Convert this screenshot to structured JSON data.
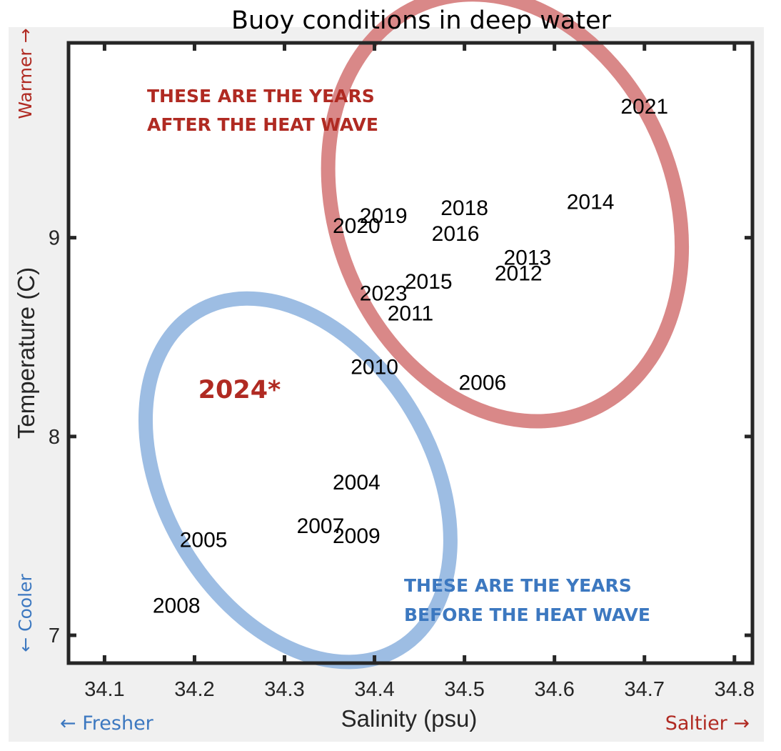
{
  "chart_data": {
    "type": "scatter",
    "title": "Buoy conditions in deep water",
    "xlabel": "Salinity (psu)",
    "ylabel": "Temperature (C)",
    "xlim": [
      34.06,
      34.82
    ],
    "ylim": [
      6.86,
      9.98
    ],
    "xticks": [
      34.1,
      34.2,
      34.3,
      34.4,
      34.5,
      34.6,
      34.7,
      34.8
    ],
    "yticks": [
      7,
      8,
      9
    ],
    "xtick_labels": [
      "34.1",
      "34.2",
      "34.3",
      "34.4",
      "34.5",
      "34.6",
      "34.7",
      "34.8"
    ],
    "ytick_labels": [
      "7",
      "8",
      "9"
    ],
    "grid": false,
    "points": [
      {
        "label": "2021",
        "x": 34.7,
        "y": 9.66
      },
      {
        "label": "2014",
        "x": 34.64,
        "y": 9.18
      },
      {
        "label": "2018",
        "x": 34.5,
        "y": 9.15
      },
      {
        "label": "2019",
        "x": 34.41,
        "y": 9.11
      },
      {
        "label": "2020",
        "x": 34.38,
        "y": 9.06
      },
      {
        "label": "2016",
        "x": 34.49,
        "y": 9.02
      },
      {
        "label": "2013",
        "x": 34.57,
        "y": 8.9
      },
      {
        "label": "2012",
        "x": 34.56,
        "y": 8.82
      },
      {
        "label": "2015",
        "x": 34.46,
        "y": 8.78
      },
      {
        "label": "2023",
        "x": 34.41,
        "y": 8.72
      },
      {
        "label": "2011",
        "x": 34.44,
        "y": 8.62
      },
      {
        "label": "2010",
        "x": 34.4,
        "y": 8.35
      },
      {
        "label": "2006",
        "x": 34.52,
        "y": 8.27
      },
      {
        "label": "2004",
        "x": 34.38,
        "y": 7.77
      },
      {
        "label": "2007",
        "x": 34.34,
        "y": 7.55
      },
      {
        "label": "2009",
        "x": 34.38,
        "y": 7.5
      },
      {
        "label": "2005",
        "x": 34.21,
        "y": 7.48
      },
      {
        "label": "2008",
        "x": 34.18,
        "y": 7.15
      },
      {
        "label": "2024*",
        "x": 34.25,
        "y": 8.23,
        "highlight": true
      }
    ],
    "ellipses": [
      {
        "name": "after",
        "cx": 34.545,
        "cy": 9.15,
        "rx": 0.244,
        "ry": 0.85,
        "angle_deg": -22,
        "color": "#d98888"
      },
      {
        "name": "before",
        "cx": 34.315,
        "cy": 7.78,
        "rx": 0.218,
        "ry": 0.67,
        "angle_deg": -31,
        "color": "#9dbde3"
      }
    ],
    "annotations": {
      "after": [
        "THESE ARE THE YEARS",
        "AFTER THE HEAT WAVE"
      ],
      "before": [
        "THESE ARE THE YEARS",
        "BEFORE THE HEAT WAVE"
      ]
    },
    "direction_labels": {
      "warmer": "Warmer →",
      "cooler": "← Cooler",
      "fresher": "← Fresher",
      "saltier": "Saltier →"
    }
  },
  "colors": {
    "panel": "#f0f0f0",
    "axes_bg": "#ffffff",
    "axis": "#262626",
    "red": "#b02a22",
    "blue": "#3c78c0",
    "point_text": "#000000",
    "tick_text": "#262626"
  }
}
